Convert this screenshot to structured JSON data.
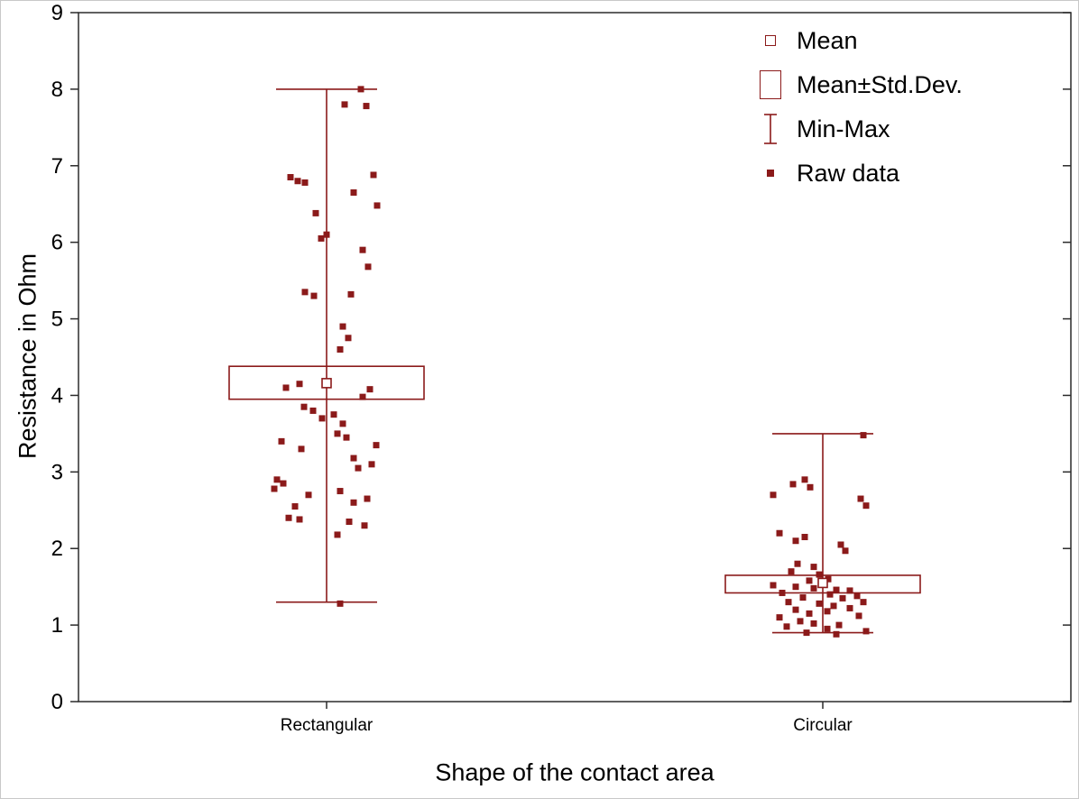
{
  "chart_data": {
    "type": "boxplot",
    "title": "",
    "xlabel": "Shape of the contact area",
    "ylabel": "Resistance in Ohm",
    "ylim": [
      0,
      9
    ],
    "yticks": [
      0,
      1,
      2,
      3,
      4,
      5,
      6,
      7,
      8,
      9
    ],
    "categories": [
      "Rectangular",
      "Circular"
    ],
    "legend": [
      {
        "label": "Mean",
        "icon": "mean-square-icon"
      },
      {
        "label": "Mean±Std.Dev.",
        "icon": "stddev-box-icon"
      },
      {
        "label": "Min-Max",
        "icon": "minmax-whisker-icon"
      },
      {
        "label": "Raw data",
        "icon": "raw-data-point-icon"
      }
    ],
    "colors": {
      "series": "#8B1A1A",
      "axis": "#2b2b2b",
      "text": "#000000",
      "background": "#ffffff"
    },
    "layout": {
      "legend_position": "top-right",
      "grid": false
    },
    "groups": [
      {
        "category": "Rectangular",
        "mean": 4.16,
        "mean_minus_sd": 3.95,
        "mean_plus_sd": 4.38,
        "min": 1.3,
        "max": 8.0,
        "raw": [
          [
            -40,
            6.85
          ],
          [
            -32,
            6.8
          ],
          [
            -24,
            6.78
          ],
          [
            20,
            7.8
          ],
          [
            38,
            8.0
          ],
          [
            44,
            7.78
          ],
          [
            30,
            6.65
          ],
          [
            52,
            6.88
          ],
          [
            56,
            6.48
          ],
          [
            -12,
            6.38
          ],
          [
            -6,
            6.05
          ],
          [
            0,
            6.1
          ],
          [
            40,
            5.9
          ],
          [
            46,
            5.68
          ],
          [
            -24,
            5.35
          ],
          [
            -14,
            5.3
          ],
          [
            27,
            5.32
          ],
          [
            18,
            4.9
          ],
          [
            24,
            4.75
          ],
          [
            15,
            4.6
          ],
          [
            -45,
            4.1
          ],
          [
            -30,
            4.15
          ],
          [
            48,
            4.08
          ],
          [
            40,
            3.98
          ],
          [
            -25,
            3.85
          ],
          [
            -15,
            3.8
          ],
          [
            8,
            3.75
          ],
          [
            -5,
            3.7
          ],
          [
            18,
            3.63
          ],
          [
            12,
            3.5
          ],
          [
            22,
            3.45
          ],
          [
            -50,
            3.4
          ],
          [
            55,
            3.35
          ],
          [
            -28,
            3.3
          ],
          [
            30,
            3.18
          ],
          [
            50,
            3.1
          ],
          [
            35,
            3.05
          ],
          [
            -55,
            2.9
          ],
          [
            -48,
            2.85
          ],
          [
            -58,
            2.78
          ],
          [
            15,
            2.75
          ],
          [
            -20,
            2.7
          ],
          [
            45,
            2.65
          ],
          [
            30,
            2.6
          ],
          [
            -35,
            2.55
          ],
          [
            -42,
            2.4
          ],
          [
            -30,
            2.38
          ],
          [
            25,
            2.35
          ],
          [
            42,
            2.3
          ],
          [
            12,
            2.18
          ],
          [
            15,
            1.28
          ]
        ]
      },
      {
        "category": "Circular",
        "mean": 1.55,
        "mean_minus_sd": 1.42,
        "mean_plus_sd": 1.65,
        "min": 0.9,
        "max": 3.5,
        "raw": [
          [
            45,
            3.48
          ],
          [
            -20,
            2.9
          ],
          [
            -33,
            2.84
          ],
          [
            -14,
            2.8
          ],
          [
            -55,
            2.7
          ],
          [
            42,
            2.65
          ],
          [
            48,
            2.56
          ],
          [
            -48,
            2.2
          ],
          [
            -20,
            2.15
          ],
          [
            -30,
            2.1
          ],
          [
            20,
            2.05
          ],
          [
            25,
            1.97
          ],
          [
            -28,
            1.8
          ],
          [
            -10,
            1.76
          ],
          [
            -35,
            1.7
          ],
          [
            -4,
            1.66
          ],
          [
            6,
            1.6
          ],
          [
            -15,
            1.58
          ],
          [
            -55,
            1.52
          ],
          [
            -30,
            1.5
          ],
          [
            -10,
            1.48
          ],
          [
            15,
            1.46
          ],
          [
            30,
            1.45
          ],
          [
            -45,
            1.42
          ],
          [
            8,
            1.4
          ],
          [
            38,
            1.38
          ],
          [
            -22,
            1.36
          ],
          [
            22,
            1.35
          ],
          [
            -38,
            1.3
          ],
          [
            45,
            1.3
          ],
          [
            -4,
            1.28
          ],
          [
            12,
            1.25
          ],
          [
            30,
            1.22
          ],
          [
            -30,
            1.2
          ],
          [
            5,
            1.18
          ],
          [
            -15,
            1.15
          ],
          [
            40,
            1.12
          ],
          [
            -48,
            1.1
          ],
          [
            -25,
            1.05
          ],
          [
            -10,
            1.02
          ],
          [
            18,
            1.0
          ],
          [
            -40,
            0.98
          ],
          [
            5,
            0.95
          ],
          [
            48,
            0.92
          ],
          [
            -18,
            0.9
          ],
          [
            15,
            0.88
          ]
        ]
      }
    ]
  }
}
